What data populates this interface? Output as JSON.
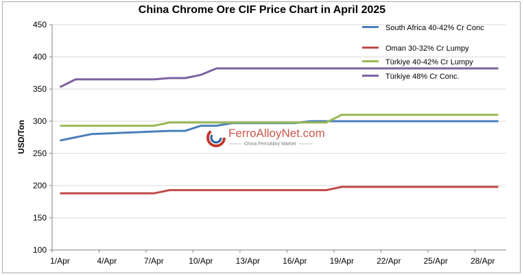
{
  "chart_data": {
    "type": "line",
    "title": "China Chrome Ore CIF Price Chart in April 2025",
    "ylabel": "USD/Ton",
    "xlabel": "",
    "ylim": [
      100,
      450
    ],
    "yticks": [
      100,
      150,
      200,
      250,
      300,
      350,
      400,
      450
    ],
    "xtick_labels": [
      "1/Apr",
      "4/Apr",
      "7/Apr",
      "10/Apr",
      "13/Apr",
      "16/Apr",
      "19/Apr",
      "22/Apr",
      "25/Apr",
      "28/Apr"
    ],
    "x": [
      "1/Apr",
      "2/Apr",
      "3/Apr",
      "4/Apr",
      "5/Apr",
      "6/Apr",
      "7/Apr",
      "8/Apr",
      "9/Apr",
      "10/Apr",
      "11/Apr",
      "12/Apr",
      "13/Apr",
      "14/Apr",
      "15/Apr",
      "16/Apr",
      "17/Apr",
      "18/Apr",
      "19/Apr",
      "20/Apr",
      "21/Apr",
      "22/Apr",
      "23/Apr",
      "24/Apr",
      "25/Apr",
      "26/Apr",
      "27/Apr",
      "28/Apr",
      "29/Apr"
    ],
    "grid": "horizontal",
    "legend_position": "top-right",
    "series": [
      {
        "name": "South Africa 40-42% Cr Conc",
        "color": "#4a7ebb",
        "values": [
          270,
          275,
          280,
          281,
          282,
          283,
          284,
          285,
          285,
          293,
          293,
          297,
          297,
          297,
          297,
          297,
          300,
          300,
          300,
          300,
          300,
          300,
          300,
          300,
          300,
          300,
          300,
          300,
          300
        ]
      },
      {
        "name": "Oman 30-32% Cr Lumpy",
        "color": "#be4b48",
        "values": [
          188,
          188,
          188,
          188,
          188,
          188,
          188,
          193,
          193,
          193,
          193,
          193,
          193,
          193,
          193,
          193,
          193,
          193,
          198,
          198,
          198,
          198,
          198,
          198,
          198,
          198,
          198,
          198,
          198
        ]
      },
      {
        "name": "Türkiye 40-42% Cr Lumpy",
        "color": "#98b954",
        "values": [
          293,
          293,
          293,
          293,
          293,
          293,
          293,
          298,
          298,
          298,
          298,
          298,
          298,
          298,
          298,
          298,
          298,
          298,
          310,
          310,
          310,
          310,
          310,
          310,
          310,
          310,
          310,
          310,
          310
        ]
      },
      {
        "name": "Türkiye 48% Cr Conc.",
        "color": "#7d60a0",
        "values": [
          353,
          365,
          365,
          365,
          365,
          365,
          365,
          367,
          367,
          372,
          382,
          382,
          382,
          382,
          382,
          382,
          382,
          382,
          382,
          382,
          382,
          382,
          382,
          382,
          382,
          382,
          382,
          382,
          382
        ]
      }
    ]
  },
  "watermark": {
    "brand": "FerroAlloyNet.com",
    "tagline": "China FerroAlloy Market",
    "logo_colors": [
      "#c0392b",
      "#1f5fa8"
    ]
  }
}
